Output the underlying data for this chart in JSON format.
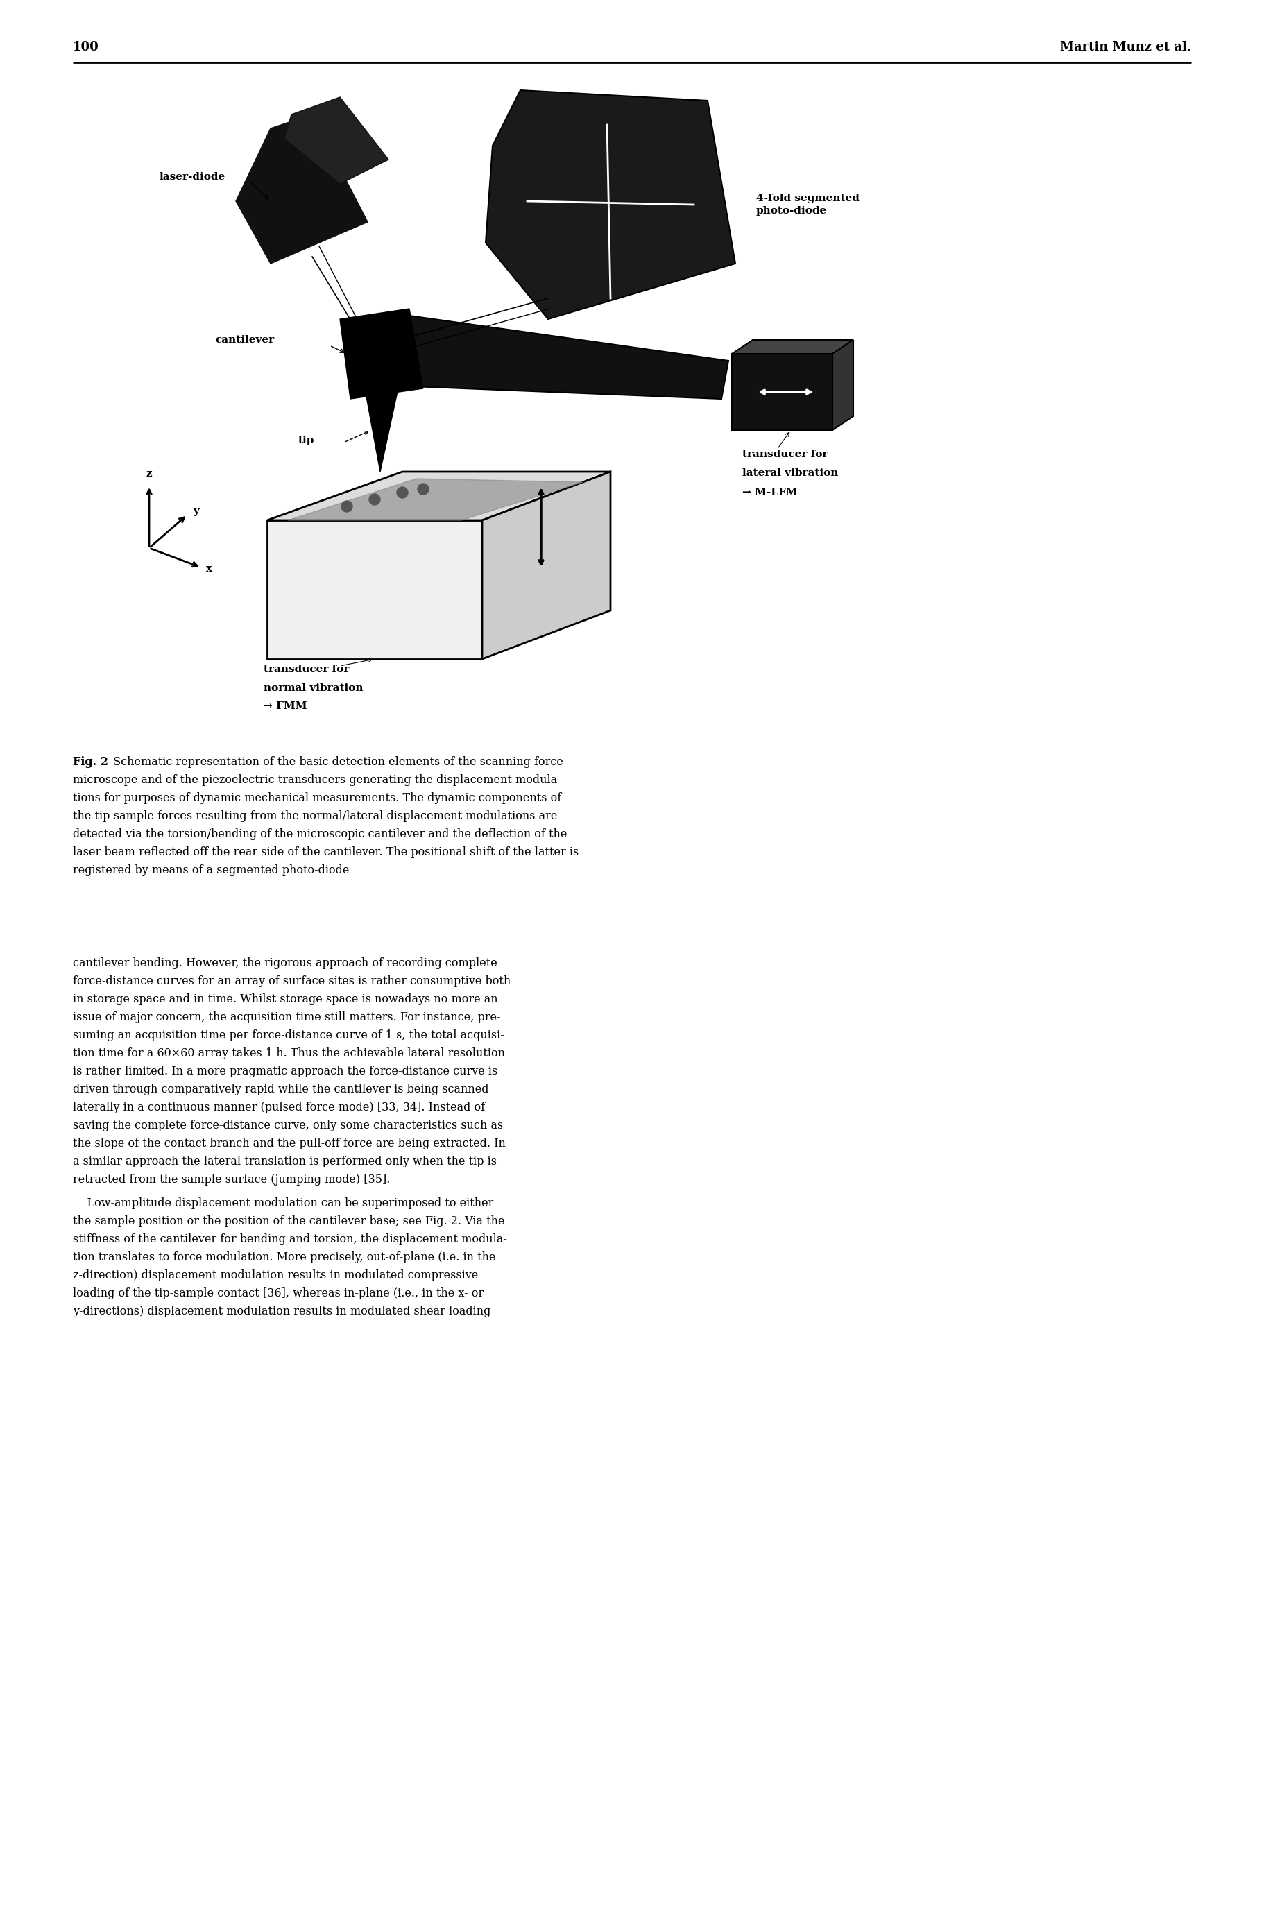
{
  "page_number": "100",
  "page_author": "Martin Munz et al.",
  "bg_color": "#ffffff",
  "fig_caption_bold": "Fig. 2",
  "fig_caption_text": " Schematic representation of the basic detection elements of the scanning force microscope and of the piezoelectric transducers generating the displacement modula-tions for purposes of dynamic mechanical measurements. The dynamic components of the tip-sample forces resulting from the normal/lateral displacement modulations are detected via the torsion/bending of the microscopic cantilever and the deflection of the laser beam reflected off the rear side of the cantilever. The positional shift of the latter is registered by means of a segmented photo-diode",
  "body_para1": "cantilever bending. However, the rigorous approach of recording complete force-distance curves for an array of surface sites is rather consumptive both in storage space and in time. Whilst storage space is nowadays no more an issue of major concern, the acquisition time still matters. For instance, pre-suming an acquisition time per force-distance curve of 1 s, the total acquisi-tion time for a 60×60 array takes 1 h. Thus the achievable lateral resolution is rather limited. In a more pragmatic approach the force-distance curve is driven through comparatively rapid while the cantilever is being scanned laterally in a continuous manner (pulsed force mode) [33, 34]. Instead of saving the complete force-distance curve, only some characteristics such as the slope of the contact branch and the pull-off force are being extracted. In a similar approach the lateral translation is performed only when the tip is retracted from the sample surface (jumping mode) [35].",
  "body_para2": "Low-amplitude displacement modulation can be superimposed to either the sample position or the position of the cantilever base; see Fig. 2. Via the stiffness of the cantilever for bending and torsion, the displacement modula-tion translates to force modulation. More precisely, out-of-plane (i.e. in the z-direction) displacement modulation results in modulated compressive loading of the tip-sample contact [36], whereas in-plane (i.e., in the x- or y-directions) displacement modulation results in modulated shear loading",
  "diagram_label_laser": "laser-diode",
  "diagram_label_photodiode": "4-fold segmented\nphoto-diode",
  "diagram_label_cantilever": "cantilever",
  "diagram_label_tip": "tip",
  "diagram_label_trans_lat1": "transducer for",
  "diagram_label_trans_lat2": "lateral vibration",
  "diagram_label_trans_lat3": "→ M-LFM",
  "diagram_label_trans_norm1": "transducer for",
  "diagram_label_trans_norm2": "normal vibration",
  "diagram_label_trans_norm3": "→ FMM"
}
